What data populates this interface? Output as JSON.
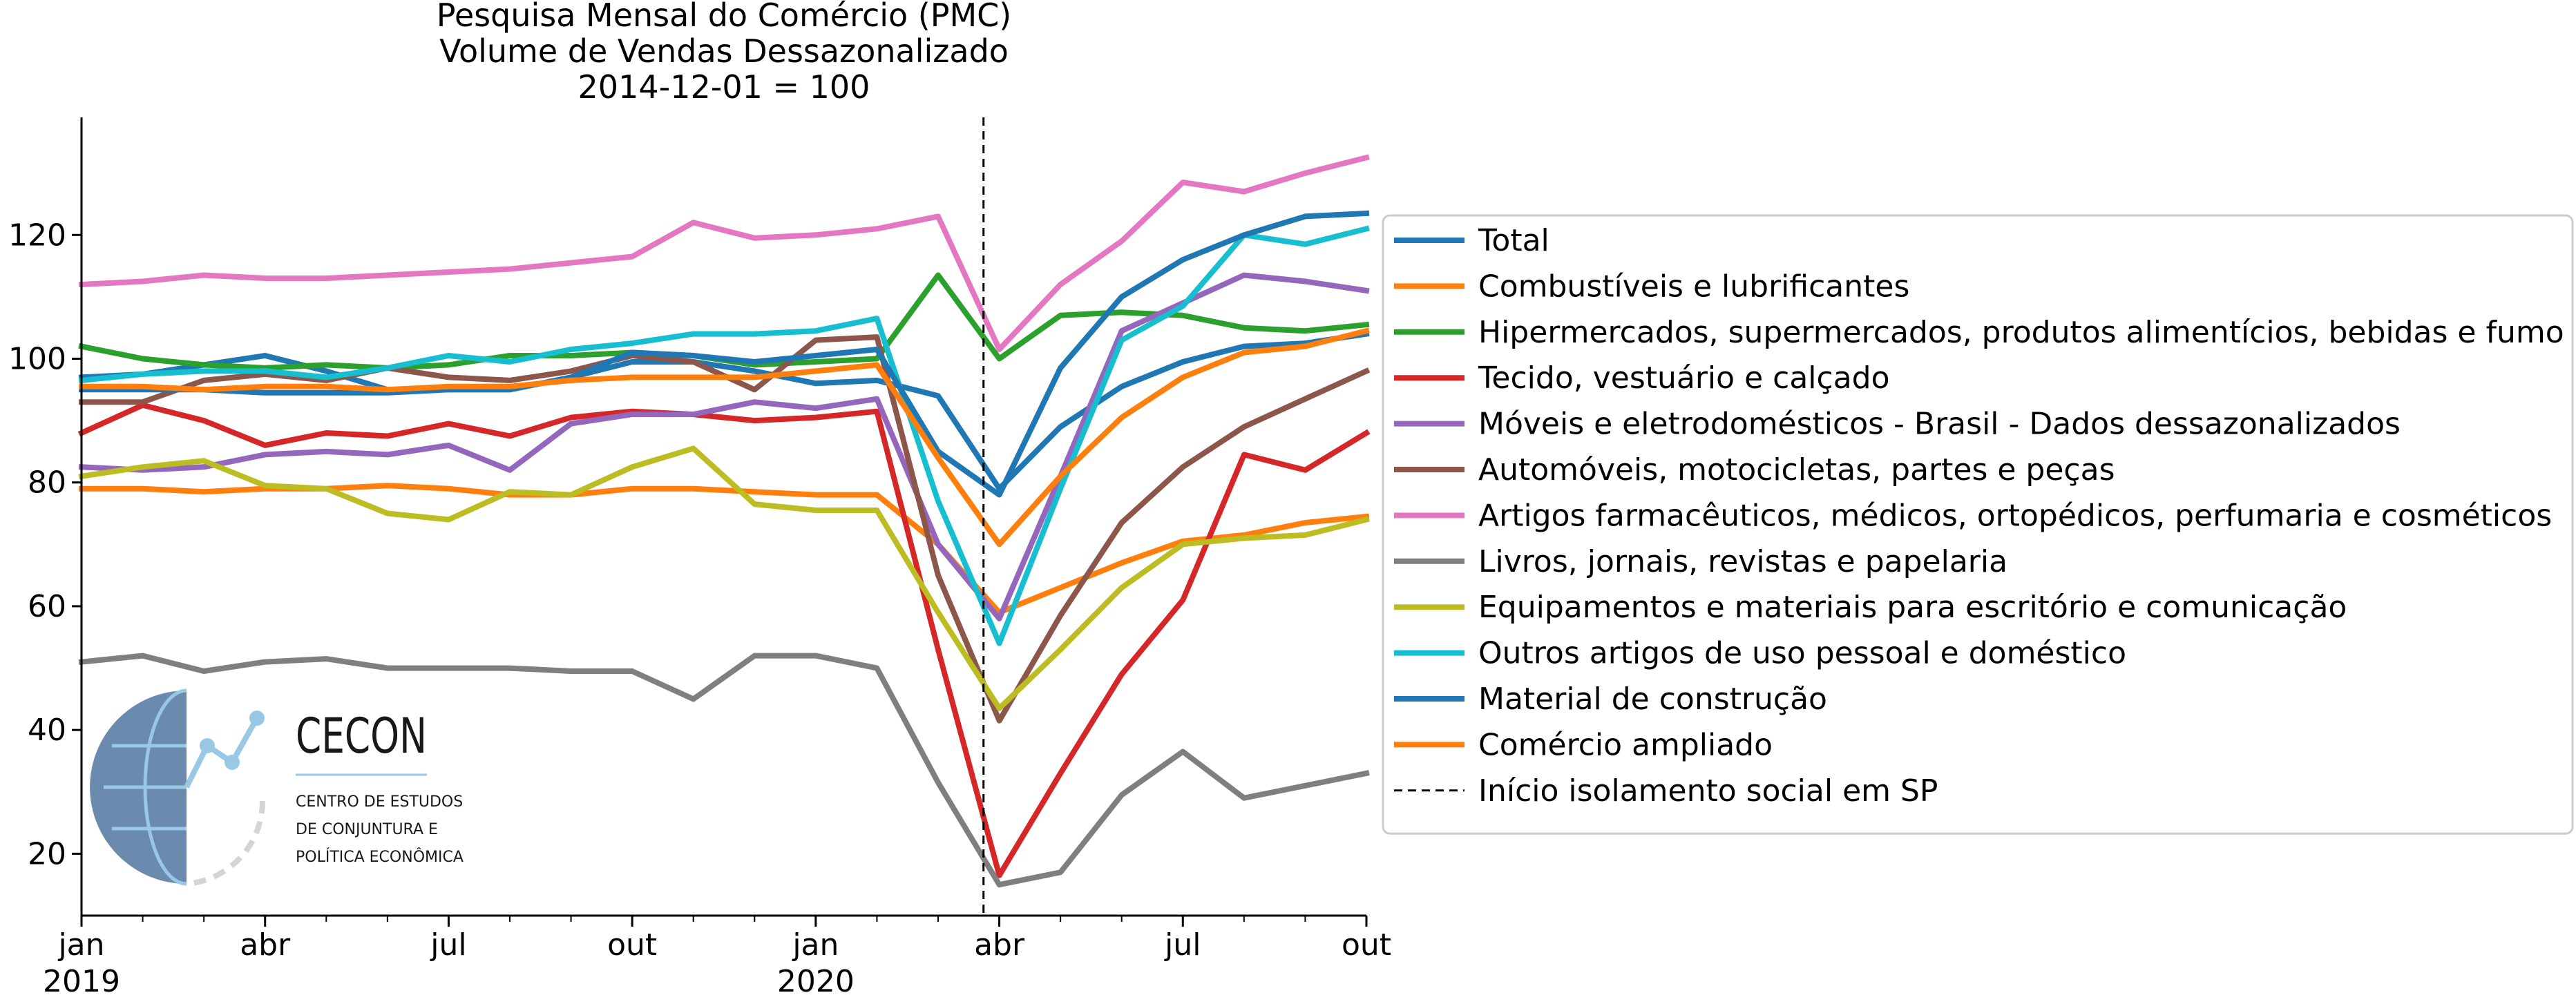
{
  "chart_data": {
    "type": "line",
    "title": "Pesquisa Mensal do Comércio (PMC)",
    "subtitle": [
      "Volume de Vendas Dessazonalizado",
      "2014-12-01 = 100"
    ],
    "xlabel": "",
    "ylabel": "",
    "x": [
      "2019-01",
      "2019-02",
      "2019-03",
      "2019-04",
      "2019-05",
      "2019-06",
      "2019-07",
      "2019-08",
      "2019-09",
      "2019-10",
      "2019-11",
      "2019-12",
      "2020-01",
      "2020-02",
      "2020-03",
      "2020-04",
      "2020-05",
      "2020-06",
      "2020-07",
      "2020-08",
      "2020-09",
      "2020-10"
    ],
    "x_ticks": [
      {
        "x": "2019-01",
        "label": "jan",
        "year": "2019"
      },
      {
        "x": "2019-04",
        "label": "abr",
        "year": ""
      },
      {
        "x": "2019-07",
        "label": "jul",
        "year": ""
      },
      {
        "x": "2019-10",
        "label": "out",
        "year": ""
      },
      {
        "x": "2020-01",
        "label": "jan",
        "year": "2020"
      },
      {
        "x": "2020-04",
        "label": "abr",
        "year": ""
      },
      {
        "x": "2020-07",
        "label": "jul",
        "year": ""
      },
      {
        "x": "2020-10",
        "label": "out",
        "year": ""
      }
    ],
    "y_ticks": [
      20,
      40,
      60,
      80,
      100,
      120
    ],
    "ylim": [
      10,
      139
    ],
    "grid": false,
    "legend_position": "right",
    "vline": {
      "x": "2020-03-24",
      "name": "Início isolamento social em SP",
      "color": "#000000",
      "style": "dashed"
    },
    "series": [
      {
        "name": "Total",
        "color": "#1f77b4",
        "values": [
          97,
          97.5,
          99,
          100.5,
          98,
          95,
          95,
          95,
          97,
          99.5,
          99.5,
          98,
          96,
          96.5,
          94,
          79,
          89,
          95.5,
          99.5,
          102,
          102.5,
          104
        ]
      },
      {
        "name": "Combustíveis e lubrificantes",
        "color": "#ff7f0e",
        "values": [
          79,
          79,
          78.5,
          79,
          79,
          79.5,
          79,
          78,
          78,
          79,
          79,
          78.5,
          78,
          78,
          70,
          59,
          63,
          67,
          70.5,
          71.5,
          73.5,
          74.5
        ]
      },
      {
        "name": "Hipermercados, supermercados, produtos alimentícios, bebidas e fumo",
        "color": "#2ca02c",
        "values": [
          102,
          100,
          99,
          98.5,
          99,
          98.5,
          99,
          100.5,
          100.5,
          101,
          100.5,
          99,
          99.5,
          100,
          113.5,
          100,
          107,
          107.5,
          107,
          105,
          104.5,
          105.5
        ]
      },
      {
        "name": "Tecido, vestuário e calçado",
        "color": "#d62728",
        "values": [
          88,
          92.5,
          90,
          86,
          88,
          87.5,
          89.5,
          87.5,
          90.5,
          91.5,
          91,
          90,
          90.5,
          91.5,
          53,
          16.5,
          33,
          49,
          61,
          84.5,
          82,
          88
        ]
      },
      {
        "name": "Móveis e eletrodomésticos - Brasil - Dados dessazonalizados",
        "color": "#9467bd",
        "values": [
          82.5,
          82,
          82.5,
          84.5,
          85,
          84.5,
          86,
          82,
          89.5,
          91,
          91,
          93,
          92,
          93.5,
          70,
          58,
          81,
          104.5,
          109,
          113.5,
          112.5,
          111
        ]
      },
      {
        "name": "Automóveis, motocicletas, partes e peças",
        "color": "#8c564b",
        "values": [
          93,
          93,
          96.5,
          97.5,
          96.5,
          98.5,
          97,
          96.5,
          98,
          100.5,
          99.5,
          95,
          103,
          103.5,
          65,
          41.5,
          58.5,
          73.5,
          82.5,
          89,
          93.5,
          98
        ]
      },
      {
        "name": "Artigos farmacêuticos, médicos, ortopédicos, perfumaria e cosméticos",
        "color": "#e377c2",
        "values": [
          112,
          112.5,
          113.5,
          113,
          113,
          113.5,
          114,
          114.5,
          115.5,
          116.5,
          122,
          119.5,
          120,
          121,
          123,
          101.5,
          112,
          119,
          128.5,
          127,
          130,
          132.5
        ]
      },
      {
        "name": "Livros, jornais, revistas e papelaria",
        "color": "#7f7f7f",
        "values": [
          51,
          52,
          49.5,
          51,
          51.5,
          50,
          50,
          50,
          49.5,
          49.5,
          45,
          52,
          52,
          50,
          31.5,
          15,
          17,
          29.5,
          36.5,
          29,
          31,
          33
        ]
      },
      {
        "name": "Equipamentos e materiais para escritório e comunicação",
        "color": "#bcbd22",
        "values": [
          81,
          82.5,
          83.5,
          79.5,
          79,
          75,
          74,
          78.5,
          78,
          82.5,
          85.5,
          76.5,
          75.5,
          75.5,
          59,
          43.5,
          53,
          63,
          70,
          71,
          71.5,
          74
        ]
      },
      {
        "name": "Outros artigos de uso pessoal e doméstico",
        "color": "#17becf",
        "values": [
          96.5,
          97.5,
          98,
          98,
          97,
          98.5,
          100.5,
          99.5,
          101.5,
          102.5,
          104,
          104,
          104.5,
          106.5,
          77,
          54,
          79,
          103,
          108.5,
          120,
          118.5,
          121
        ]
      },
      {
        "name": "Material de construção",
        "color": "#1f77b4",
        "values": [
          95,
          95,
          95,
          94.5,
          94.5,
          94.5,
          95,
          95,
          97,
          101,
          100.5,
          99.5,
          100.5,
          101.5,
          85,
          78,
          98.5,
          110,
          116,
          120,
          123,
          123.5
        ]
      },
      {
        "name": "Comércio ampliado",
        "color": "#ff7f0e",
        "values": [
          95.5,
          95.5,
          95,
          95.5,
          95.5,
          95,
          95.5,
          95.5,
          96.5,
          97,
          97,
          97,
          98,
          99,
          84,
          70,
          81,
          90.5,
          97,
          101,
          102,
          104.5
        ]
      }
    ]
  },
  "logo": {
    "name": "CECON",
    "subtitle_lines": [
      "CENTRO DE ESTUDOS",
      "DE CONJUNTURA E",
      "POLÍTICA ECONÔMICA"
    ],
    "accent_color": "#8ec3e3",
    "globe_color": "#5a7fa5"
  }
}
